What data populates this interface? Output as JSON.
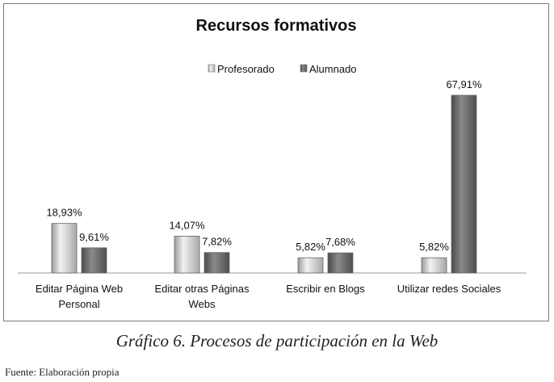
{
  "chart_data": {
    "type": "bar",
    "title": "Recursos formativos",
    "categories": [
      [
        "Editar Página Web",
        "Personal"
      ],
      [
        "Editar otras Páginas",
        "Webs"
      ],
      [
        "Escribir en Blogs"
      ],
      [
        "Utilizar redes Sociales"
      ]
    ],
    "series": [
      {
        "name": "Profesorado",
        "values": [
          18.93,
          14.07,
          5.82,
          5.82
        ],
        "labels": [
          "18,93%",
          "14,07%",
          "5,82%",
          "5,82%"
        ]
      },
      {
        "name": "Alumnado",
        "values": [
          9.61,
          7.82,
          7.68,
          67.91
        ],
        "labels": [
          "9,61%",
          "7,82%",
          "7,68%",
          "67,91%"
        ]
      }
    ],
    "ylim": [
      0,
      75
    ],
    "legend_position": "top",
    "colors": {
      "Profesorado": "#d4d4d4",
      "Alumnado": "#6e6e6e"
    }
  },
  "caption": "Gráfico 6. Procesos de participación en la Web",
  "source": "Fuente: Elaboración propia"
}
